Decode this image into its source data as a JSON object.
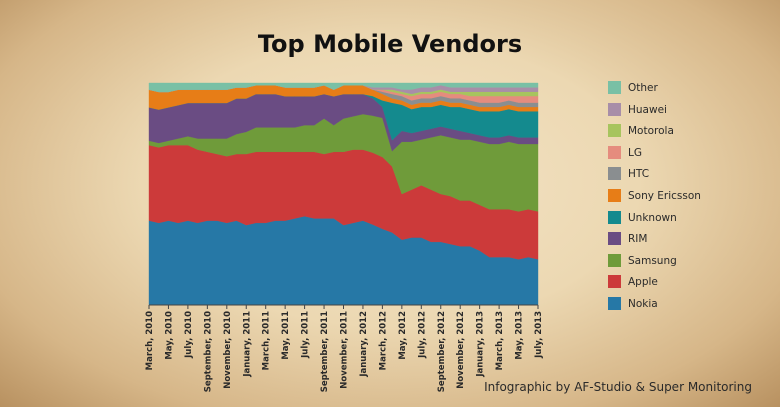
{
  "credit": "Infographic by AF-Studio & Super Monitoring",
  "chart_data": {
    "type": "area",
    "stacked": true,
    "normalized": true,
    "title": "Top Mobile Vendors",
    "xlabel": "",
    "ylabel": "",
    "ylim": [
      0,
      100
    ],
    "legend_position": "right",
    "x": [
      "March, 2010",
      "April, 2010",
      "May, 2010",
      "June, 2010",
      "July, 2010",
      "August, 2010",
      "September, 2010",
      "October, 2010",
      "November, 2010",
      "December, 2010",
      "January, 2011",
      "February, 2011",
      "March, 2011",
      "April, 2011",
      "May, 2011",
      "June, 2011",
      "July, 2011",
      "August, 2011",
      "September, 2011",
      "October, 2011",
      "November, 2011",
      "December, 2011",
      "January, 2012",
      "February, 2012",
      "March, 2012",
      "April, 2012",
      "May, 2012",
      "June, 2012",
      "July, 2012",
      "August, 2012",
      "September, 2012",
      "October, 2012",
      "November, 2012",
      "December, 2012",
      "January, 2013",
      "February, 2013",
      "March, 2013",
      "April, 2013",
      "May, 2013",
      "June, 2013",
      "July, 2013"
    ],
    "x_tick_labels": [
      "March, 2010",
      "May, 2010",
      "July, 2010",
      "September, 2010",
      "November, 2010",
      "January, 2011",
      "March, 2011",
      "May, 2011",
      "July, 2011",
      "September, 2011",
      "November, 2011",
      "January, 2012",
      "March, 2012",
      "May, 2012",
      "July, 2012",
      "September, 2012",
      "November, 2012",
      "January, 2013",
      "March, 2013",
      "May, 2013",
      "July, 2013"
    ],
    "series": [
      {
        "name": "Nokia",
        "color": "#2678a6",
        "values": [
          38,
          37,
          38,
          37,
          38,
          37,
          38,
          38,
          37,
          38,
          36,
          37,
          37,
          38,
          38,
          39,
          40,
          39,
          39,
          39,
          36,
          37,
          38,
          37,
          35,
          33,
          30,
          31,
          31,
          29,
          29,
          28,
          27,
          27,
          25,
          22,
          22,
          22,
          21,
          22,
          21
        ]
      },
      {
        "name": "Apple",
        "color": "#cc3a3a",
        "values": [
          34,
          34,
          34,
          35,
          34,
          33,
          31,
          30,
          30,
          30,
          32,
          32,
          32,
          31,
          31,
          30,
          29,
          30,
          29,
          30,
          33,
          33,
          32,
          33,
          33,
          30,
          21,
          22,
          24,
          24,
          22,
          22,
          21,
          21,
          21,
          22,
          22,
          22,
          22,
          22,
          22
        ]
      },
      {
        "name": "Samsung",
        "color": "#6f9b3a",
        "values": [
          2,
          2,
          2,
          3,
          4,
          5,
          6,
          7,
          8,
          9,
          10,
          11,
          11,
          11,
          11,
          11,
          12,
          12,
          16,
          12,
          15,
          15,
          16,
          17,
          18,
          7,
          24,
          22,
          21,
          24,
          27,
          27,
          28,
          28,
          29,
          30,
          30,
          31,
          31,
          30,
          31
        ]
      },
      {
        "name": "RIM",
        "color": "#6a4c83",
        "values": [
          15,
          15,
          15,
          15,
          15,
          16,
          16,
          16,
          16,
          16,
          15,
          15,
          15,
          15,
          14,
          14,
          13,
          13,
          11,
          13,
          11,
          10,
          9,
          8,
          5,
          5,
          5,
          4,
          4,
          4,
          4,
          4,
          4,
          3,
          3,
          3,
          3,
          3,
          3,
          3,
          3
        ]
      },
      {
        "name": "Unknown",
        "color": "#148a8e",
        "values": [
          0,
          0,
          0,
          0,
          0,
          0,
          0,
          0,
          0,
          0,
          0,
          0,
          0,
          0,
          0,
          0,
          0,
          0,
          0,
          0,
          0,
          0,
          0,
          1,
          3,
          17,
          12,
          11,
          11,
          10,
          10,
          10,
          11,
          11,
          11,
          12,
          12,
          12,
          12,
          12,
          12
        ]
      },
      {
        "name": "Sony Ericsson",
        "color": "#e77d17",
        "values": [
          8,
          8,
          7,
          7,
          6,
          6,
          6,
          6,
          6,
          5,
          5,
          4,
          4,
          4,
          4,
          4,
          4,
          4,
          4,
          3,
          4,
          4,
          4,
          3,
          3,
          2,
          2,
          2,
          2,
          2,
          2,
          2,
          2,
          2,
          2,
          2,
          2,
          2,
          2,
          2,
          2
        ]
      },
      {
        "name": "HTC",
        "color": "#8a8e90",
        "values": [
          0,
          0,
          0,
          0,
          0,
          0,
          0,
          0,
          0,
          0,
          0,
          0,
          0,
          0,
          0,
          0,
          0,
          0,
          0,
          0,
          0,
          0,
          0,
          0,
          1,
          2,
          2,
          2,
          2,
          2,
          2,
          2,
          2,
          2,
          2,
          2,
          2,
          2,
          2,
          2,
          2
        ]
      },
      {
        "name": "LG",
        "color": "#e58c7e",
        "values": [
          0,
          0,
          0,
          0,
          0,
          0,
          0,
          0,
          0,
          0,
          0,
          0,
          0,
          0,
          0,
          0,
          0,
          0,
          0,
          0,
          0,
          0,
          0,
          0,
          1,
          1,
          1,
          2,
          2,
          2,
          2,
          2,
          2,
          2,
          3,
          3,
          3,
          2,
          3,
          3,
          3
        ]
      },
      {
        "name": "Motorola",
        "color": "#a7c45e",
        "values": [
          0,
          0,
          0,
          0,
          0,
          0,
          0,
          0,
          0,
          0,
          0,
          0,
          0,
          0,
          0,
          0,
          0,
          0,
          0,
          0,
          0,
          0,
          0,
          0,
          0,
          1,
          1,
          1,
          1,
          1,
          1,
          1,
          1,
          2,
          2,
          2,
          2,
          2,
          2,
          2,
          2
        ]
      },
      {
        "name": "Huawei",
        "color": "#a88ea8",
        "values": [
          0,
          0,
          0,
          0,
          0,
          0,
          0,
          0,
          0,
          0,
          0,
          0,
          0,
          0,
          0,
          0,
          0,
          0,
          0,
          0,
          0,
          0,
          0,
          1,
          1,
          1,
          1,
          2,
          2,
          2,
          2,
          2,
          2,
          2,
          2,
          2,
          2,
          2,
          2,
          2,
          2
        ]
      },
      {
        "name": "Other",
        "color": "#79c0a5",
        "values": [
          3,
          4,
          4,
          3,
          3,
          3,
          3,
          3,
          3,
          2,
          2,
          1,
          1,
          1,
          2,
          2,
          2,
          2,
          1,
          3,
          1,
          1,
          1,
          2,
          2,
          2,
          3,
          3,
          2,
          2,
          1,
          2,
          2,
          2,
          2,
          2,
          2,
          2,
          2,
          2,
          2
        ]
      }
    ],
    "legend_order": [
      "Other",
      "Huawei",
      "Motorola",
      "LG",
      "HTC",
      "Sony Ericsson",
      "Unknown",
      "RIM",
      "Samsung",
      "Apple",
      "Nokia"
    ]
  }
}
